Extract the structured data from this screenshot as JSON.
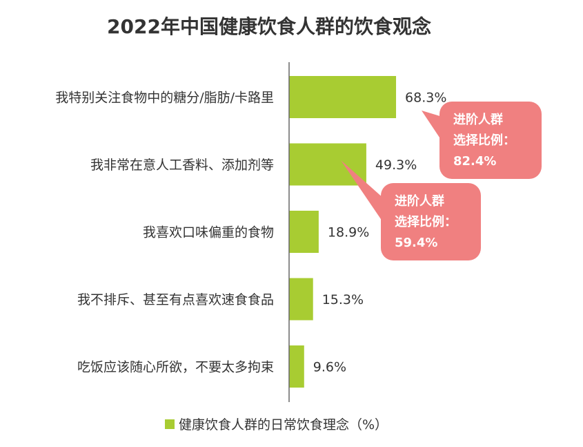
{
  "chart_data": {
    "type": "bar",
    "orientation": "horizontal",
    "title": "2022年中国健康饮食人群的饮食观念",
    "categories": [
      "我特别关注食物中的糖分/脂肪/卡路里",
      "我非常在意人工香料、添加剂等",
      "我喜欢口味偏重的食物",
      "我不排斥、甚至有点喜欢速食食品",
      "吃饭应该随心所欲，不要太多拘束"
    ],
    "series": [
      {
        "name": "健康饮食人群的日常饮食理念（%）",
        "values": [
          68.3,
          49.3,
          18.9,
          15.3,
          9.6
        ],
        "value_labels": [
          "68.3%",
          "49.3%",
          "18.9%",
          "15.3%",
          "9.6%"
        ]
      }
    ],
    "xlim": [
      0,
      100
    ],
    "grid": false,
    "legend_position": "bottom",
    "annotations": [
      {
        "category_index": 0,
        "lines": [
          "进阶人群",
          "选择比例：",
          "82.4%"
        ]
      },
      {
        "category_index": 1,
        "lines": [
          "进阶人群",
          "选择比例：",
          "59.4%"
        ]
      }
    ],
    "colors": {
      "bar": "#a8cc32",
      "callout": "#f08080",
      "axis": "#666666"
    }
  }
}
